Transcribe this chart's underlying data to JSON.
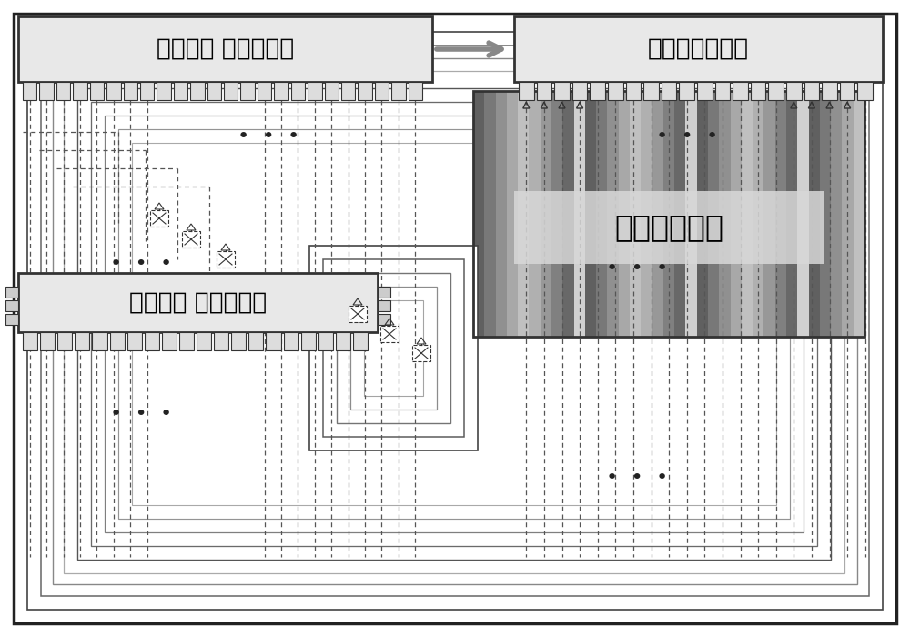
{
  "bg_color": "#ffffff",
  "label_control": "温控系统 控制子模块",
  "label_monitor": "温度监测子模块",
  "label_power": "温控系统 电源子模块",
  "label_stack": "燃料电池电堆",
  "dots": "•  •  •",
  "font_size_main": 19,
  "font_size_stack": 24,
  "ec_dark": "#333333",
  "ec_med": "#666666",
  "ec_light": "#999999",
  "fc_module": "#e8e8e8",
  "fc_pin": "#cccccc",
  "fc_stack_label": "#d8d8d8",
  "arrow_color": "#888888"
}
